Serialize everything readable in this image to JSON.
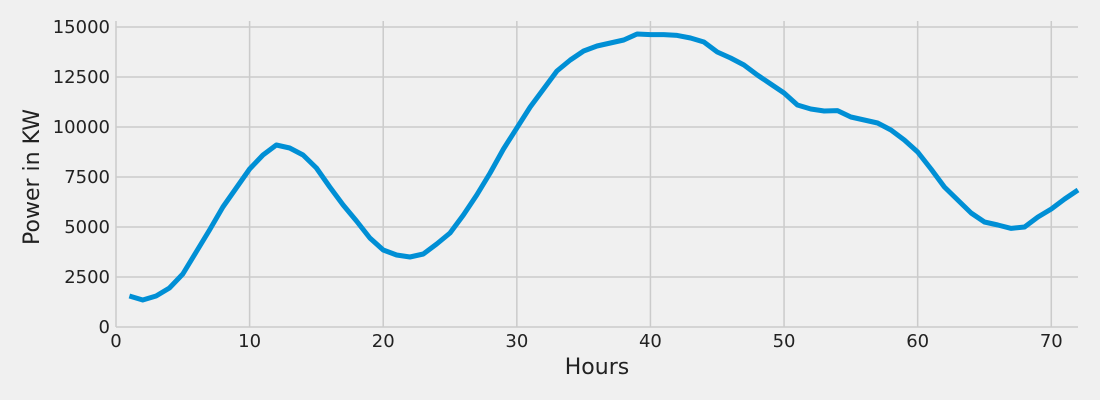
{
  "chart_data": {
    "type": "line",
    "xlabel": "Hours",
    "ylabel": "Power in KW",
    "xlim": [
      0,
      72
    ],
    "ylim": [
      0,
      15000
    ],
    "xticks": [
      0,
      10,
      20,
      30,
      40,
      50,
      60,
      70
    ],
    "yticks": [
      0,
      2500,
      5000,
      7500,
      10000,
      12500,
      15000
    ],
    "grid": true,
    "colors": {
      "background": "#f0f0f0",
      "grid": "#cbcbcb",
      "line": "#008fd5"
    },
    "series": [
      {
        "x": [
          1,
          2,
          3,
          4,
          5,
          6,
          7,
          8,
          9,
          10,
          11,
          12,
          13,
          14,
          15,
          16,
          17,
          18,
          19,
          20,
          21,
          22,
          23,
          24,
          25,
          26,
          27,
          28,
          29,
          30,
          31,
          32,
          33,
          34,
          35,
          36,
          37,
          38,
          39,
          40,
          41,
          42,
          43,
          44,
          45,
          46,
          47,
          48,
          49,
          50,
          51,
          52,
          53,
          54,
          55,
          56,
          57,
          58,
          59,
          60,
          61,
          62,
          63,
          64,
          65,
          66,
          67,
          68,
          69,
          70,
          71,
          72
        ],
        "y": [
          1550,
          1350,
          1550,
          1950,
          2650,
          3750,
          4850,
          6000,
          6950,
          7900,
          8600,
          9100,
          8950,
          8600,
          7950,
          7000,
          6100,
          5300,
          4450,
          3850,
          3600,
          3500,
          3650,
          4150,
          4700,
          5600,
          6600,
          7700,
          8900,
          9950,
          11000,
          11900,
          12800,
          13350,
          13800,
          14050,
          14200,
          14350,
          14650,
          14620,
          14620,
          14580,
          14450,
          14250,
          13750,
          13450,
          13100,
          12600,
          12150,
          11700,
          11100,
          10900,
          10800,
          10820,
          10500,
          10350,
          10200,
          9850,
          9350,
          8750,
          7900,
          7000,
          6350,
          5700,
          5250,
          5100,
          4930,
          5000,
          5500,
          5900,
          6400,
          6850
        ]
      }
    ]
  }
}
